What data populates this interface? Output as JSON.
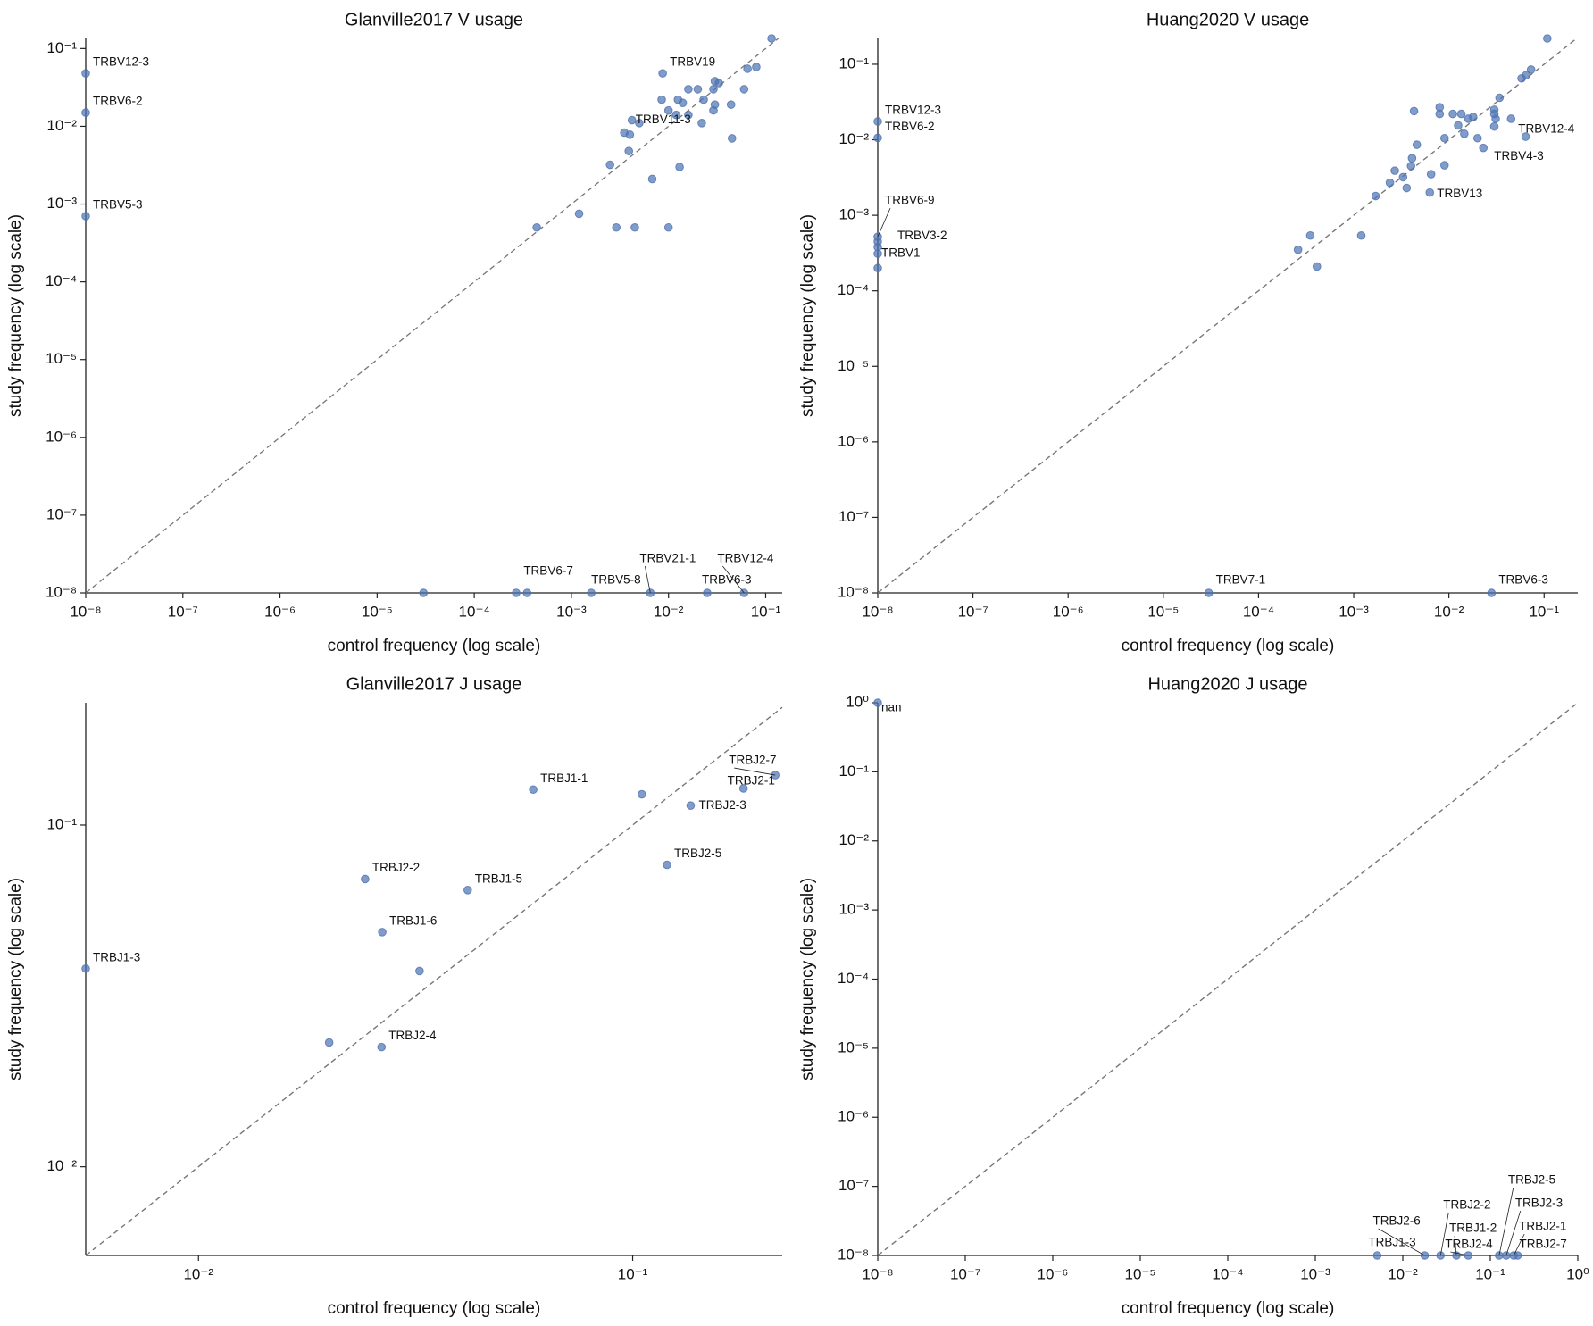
{
  "chart_data": [
    {
      "type": "scatter",
      "title": "Glanville2017 V usage",
      "x_label": "control frequency (log scale)",
      "y_label": "study frequency (log scale)",
      "xscale": "log",
      "yscale": "log",
      "color": "#4c72b0",
      "identity_line": true,
      "xlim": [
        1e-08,
        0.148
      ],
      "ylim": [
        1e-08,
        0.135
      ],
      "xticks": [
        {
          "value": 1e-08,
          "label": "10⁻⁸"
        },
        {
          "value": 1e-07,
          "label": "10⁻⁷"
        },
        {
          "value": 1e-06,
          "label": "10⁻⁶"
        },
        {
          "value": 1e-05,
          "label": "10⁻⁵"
        },
        {
          "value": 0.0001,
          "label": "10⁻⁴"
        },
        {
          "value": 0.001,
          "label": "10⁻³"
        },
        {
          "value": 0.01,
          "label": "10⁻²"
        },
        {
          "value": 0.1,
          "label": "10⁻¹"
        }
      ],
      "yticks": [
        {
          "value": 1e-08,
          "label": "10⁻⁸"
        },
        {
          "value": 1e-07,
          "label": "10⁻⁷"
        },
        {
          "value": 1e-06,
          "label": "10⁻⁶"
        },
        {
          "value": 1e-05,
          "label": "10⁻⁵"
        },
        {
          "value": 0.0001,
          "label": "10⁻⁴"
        },
        {
          "value": 0.001,
          "label": "10⁻³"
        },
        {
          "value": 0.01,
          "label": "10⁻²"
        },
        {
          "value": 0.1,
          "label": "10⁻¹"
        }
      ],
      "x": [
        1e-08,
        1e-08,
        1e-08,
        0.115,
        0.0087,
        0.08,
        0.065,
        0.03,
        0.033,
        0.029,
        0.06,
        0.023,
        0.016,
        0.02,
        0.0125,
        0.0085,
        0.014,
        0.01,
        0.012,
        0.016,
        0.022,
        0.03,
        0.044,
        0.029,
        0.0042,
        0.005,
        0.0035,
        0.004,
        0.0039,
        0.045,
        0.0025,
        0.013,
        0.0068,
        0.0012,
        0.00044,
        0.0029,
        0.0045,
        0.01,
        3e-05,
        0.00027,
        0.00035,
        0.0016,
        0.0065,
        0.025,
        0.06
      ],
      "y": [
        0.048,
        0.015,
        0.0007,
        0.135,
        0.048,
        0.058,
        0.055,
        0.038,
        0.036,
        0.03,
        0.03,
        0.022,
        0.03,
        0.03,
        0.022,
        0.022,
        0.02,
        0.016,
        0.014,
        0.014,
        0.011,
        0.019,
        0.019,
        0.016,
        0.012,
        0.011,
        0.0083,
        0.0078,
        0.0048,
        0.007,
        0.0032,
        0.003,
        0.0021,
        0.00075,
        0.0005,
        0.0005,
        0.0005,
        0.0005,
        1e-08,
        1e-08,
        1e-08,
        1e-08,
        1e-08,
        1e-08,
        1e-08
      ],
      "point_labels": [
        "TRBV12-3",
        "TRBV6-2",
        "TRBV5-3",
        null,
        "TRBV19",
        null,
        null,
        null,
        null,
        null,
        null,
        null,
        null,
        null,
        null,
        null,
        null,
        null,
        null,
        null,
        null,
        null,
        null,
        null,
        "TRBV11-3",
        null,
        null,
        null,
        null,
        null,
        null,
        null,
        null,
        null,
        null,
        null,
        null,
        null,
        null,
        null,
        "TRBV6-7",
        "TRBV5-8",
        "TRBV21-1",
        "TRBV6-3",
        "TRBV12-4"
      ]
    },
    {
      "type": "scatter",
      "title": "Huang2020 V usage",
      "x_label": "control frequency (log scale)",
      "y_label": "study frequency (log scale)",
      "xscale": "log",
      "yscale": "log",
      "color": "#4c72b0",
      "identity_line": true,
      "xlim": [
        1e-08,
        0.226
      ],
      "ylim": [
        1e-08,
        0.22
      ],
      "xticks": [
        {
          "value": 1e-08,
          "label": "10⁻⁸"
        },
        {
          "value": 1e-07,
          "label": "10⁻⁷"
        },
        {
          "value": 1e-06,
          "label": "10⁻⁶"
        },
        {
          "value": 1e-05,
          "label": "10⁻⁵"
        },
        {
          "value": 0.0001,
          "label": "10⁻⁴"
        },
        {
          "value": 0.001,
          "label": "10⁻³"
        },
        {
          "value": 0.01,
          "label": "10⁻²"
        },
        {
          "value": 0.1,
          "label": "10⁻¹"
        }
      ],
      "yticks": [
        {
          "value": 1e-08,
          "label": "10⁻⁸"
        },
        {
          "value": 1e-07,
          "label": "10⁻⁷"
        },
        {
          "value": 1e-06,
          "label": "10⁻⁶"
        },
        {
          "value": 1e-05,
          "label": "10⁻⁵"
        },
        {
          "value": 0.0001,
          "label": "10⁻⁴"
        },
        {
          "value": 0.001,
          "label": "10⁻³"
        },
        {
          "value": 0.01,
          "label": "10⁻²"
        },
        {
          "value": 0.1,
          "label": "10⁻¹"
        }
      ],
      "x": [
        1e-08,
        1e-08,
        1e-08,
        1e-08,
        1e-08,
        1e-08,
        1e-08,
        0.108,
        0.073,
        0.058,
        0.065,
        0.034,
        0.045,
        0.031,
        0.03,
        0.03,
        0.03,
        0.023,
        0.064,
        0.0043,
        0.008,
        0.008,
        0.011,
        0.0135,
        0.016,
        0.018,
        0.0125,
        0.0145,
        0.02,
        0.009,
        0.009,
        0.0046,
        0.0041,
        0.004,
        0.0027,
        0.0033,
        0.0024,
        0.0036,
        0.0065,
        0.0063,
        0.0017,
        0.0012,
        0.00035,
        0.00026,
        0.00041,
        3e-05,
        0.028
      ],
      "y": [
        0.0175,
        0.0106,
        0.00052,
        0.00045,
        0.00038,
        0.00031,
        0.0002,
        0.22,
        0.085,
        0.065,
        0.072,
        0.036,
        0.019,
        0.019,
        0.025,
        0.022,
        0.015,
        0.0078,
        0.011,
        0.024,
        0.027,
        0.022,
        0.022,
        0.022,
        0.019,
        0.02,
        0.0155,
        0.012,
        0.0105,
        0.0105,
        0.0046,
        0.0086,
        0.0057,
        0.0045,
        0.0039,
        0.0032,
        0.0027,
        0.0023,
        0.0035,
        0.002,
        0.0018,
        0.00054,
        0.00054,
        0.00035,
        0.00021,
        1e-08,
        1e-08
      ],
      "point_labels": [
        "TRBV12-3",
        "TRBV6-2",
        "TRBV6-9",
        "TRBV3-2",
        null,
        "TRBV1",
        null,
        null,
        null,
        null,
        null,
        null,
        "TRBV12-4",
        null,
        null,
        null,
        null,
        "TRBV4-3",
        null,
        null,
        null,
        null,
        null,
        null,
        null,
        null,
        null,
        null,
        null,
        null,
        null,
        null,
        null,
        null,
        null,
        null,
        null,
        null,
        null,
        "TRBV13",
        null,
        null,
        null,
        null,
        null,
        "TRBV7-1",
        "TRBV6-3"
      ]
    },
    {
      "type": "scatter",
      "title": "Glanville2017 J usage",
      "x_label": "control frequency (log scale)",
      "y_label": "study frequency (log scale)",
      "xscale": "log",
      "yscale": "log",
      "color": "#4c72b0",
      "identity_line": true,
      "xlim": [
        0.0055,
        0.221
      ],
      "ylim": [
        0.0055,
        0.228
      ],
      "xticks": [
        {
          "value": 0.01,
          "label": "10⁻²"
        },
        {
          "value": 0.1,
          "label": "10⁻¹"
        }
      ],
      "yticks": [
        {
          "value": 0.01,
          "label": "10⁻²"
        },
        {
          "value": 0.1,
          "label": "10⁻¹"
        }
      ],
      "x": [
        0.0055,
        0.059,
        0.105,
        0.213,
        0.18,
        0.136,
        0.12,
        0.0242,
        0.0417,
        0.0265,
        0.0323,
        0.02,
        0.0264
      ],
      "y": [
        0.038,
        0.127,
        0.123,
        0.14,
        0.128,
        0.114,
        0.0765,
        0.0695,
        0.0645,
        0.0486,
        0.0374,
        0.0231,
        0.0224
      ],
      "point_labels": [
        "TRBJ1-3",
        "TRBJ1-1",
        null,
        "TRBJ2-7",
        "TRBJ2-1",
        "TRBJ2-3",
        "TRBJ2-5",
        "TRBJ2-2",
        "TRBJ1-5",
        "TRBJ1-6",
        null,
        null,
        "TRBJ2-4"
      ]
    },
    {
      "type": "scatter",
      "title": "Huang2020 J usage",
      "x_label": "control frequency (log scale)",
      "y_label": "study frequency (log scale)",
      "xscale": "log",
      "yscale": "log",
      "color": "#4c72b0",
      "identity_line": true,
      "xlim": [
        1e-08,
        1
      ],
      "ylim": [
        1e-08,
        1
      ],
      "xticks": [
        {
          "value": 1e-08,
          "label": "10⁻⁸"
        },
        {
          "value": 1e-07,
          "label": "10⁻⁷"
        },
        {
          "value": 1e-06,
          "label": "10⁻⁶"
        },
        {
          "value": 1e-05,
          "label": "10⁻⁵"
        },
        {
          "value": 0.0001,
          "label": "10⁻⁴"
        },
        {
          "value": 0.001,
          "label": "10⁻³"
        },
        {
          "value": 0.01,
          "label": "10⁻²"
        },
        {
          "value": 0.1,
          "label": "10⁻¹"
        },
        {
          "value": 1,
          "label": "10⁰"
        }
      ],
      "yticks": [
        {
          "value": 1e-08,
          "label": "10⁻⁸"
        },
        {
          "value": 1e-07,
          "label": "10⁻⁷"
        },
        {
          "value": 1e-06,
          "label": "10⁻⁶"
        },
        {
          "value": 1e-05,
          "label": "10⁻⁵"
        },
        {
          "value": 0.0001,
          "label": "10⁻⁴"
        },
        {
          "value": 0.001,
          "label": "10⁻³"
        },
        {
          "value": 0.01,
          "label": "10⁻²"
        },
        {
          "value": 0.1,
          "label": "10⁻¹"
        },
        {
          "value": 1,
          "label": "10⁰"
        }
      ],
      "x": [
        1e-08,
        0.0051,
        0.0178,
        0.027,
        0.041,
        0.056,
        0.126,
        0.152,
        0.185,
        0.205
      ],
      "y": [
        1,
        1e-08,
        1e-08,
        1e-08,
        1e-08,
        1e-08,
        1e-08,
        1e-08,
        1e-08,
        1e-08
      ],
      "point_labels": [
        "nan",
        "TRBJ1-3",
        "TRBJ2-6",
        "TRBJ2-2",
        "TRBJ1-2",
        "TRBJ2-4",
        "TRBJ2-5",
        "TRBJ2-3",
        "TRBJ2-1",
        "TRBJ2-7"
      ]
    }
  ]
}
